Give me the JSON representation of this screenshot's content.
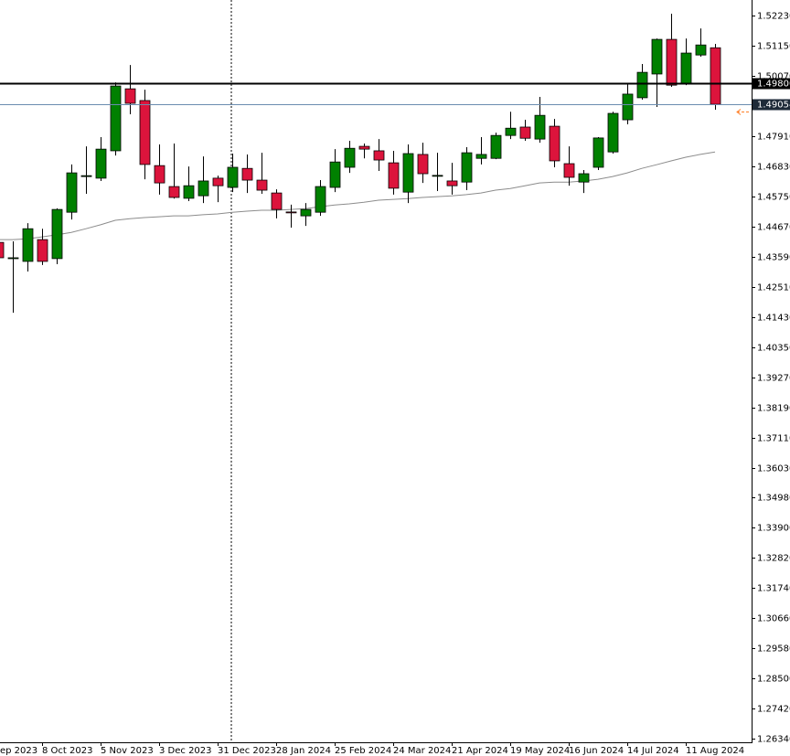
{
  "chart_data": {
    "type": "candlestick",
    "categories": [
      "ep 2023",
      null,
      null,
      "8 Oct 2023",
      null,
      null,
      null,
      "5 Nov 2023",
      null,
      null,
      null,
      "3 Dec 2023",
      null,
      null,
      null,
      "31 Dec 2023",
      null,
      null,
      null,
      "28 Jan 2024",
      null,
      null,
      null,
      "25 Feb 2024",
      null,
      null,
      null,
      "24 Mar 2024",
      null,
      null,
      null,
      "21 Apr 2024",
      null,
      null,
      null,
      "19 May 2024",
      null,
      null,
      null,
      "16 Jun 2024",
      null,
      null,
      null,
      "14 Jul 2024",
      null,
      null,
      null,
      "11 Aug 2024",
      null,
      null
    ],
    "open": [
      1.4411,
      1.4353,
      1.4343,
      1.4421,
      1.4353,
      1.4519,
      1.4647,
      1.4641,
      1.4739,
      1.4961,
      1.4919,
      1.4686,
      1.4611,
      1.4569,
      1.4578,
      1.4641,
      1.4608,
      1.4676,
      1.4634,
      1.4588,
      1.452,
      1.4506,
      1.4519,
      1.4608,
      1.468,
      1.4755,
      1.4739,
      1.4696,
      1.4591,
      1.4726,
      1.465,
      1.4631,
      1.4627,
      1.4712,
      1.4712,
      1.4794,
      1.4824,
      1.4781,
      1.4827,
      1.4693,
      1.4627,
      1.468,
      1.4735,
      1.485,
      1.4929,
      1.5014,
      1.5138,
      1.4978,
      1.5082,
      1.5108
    ],
    "high": [
      1.4427,
      1.4415,
      1.448,
      1.446,
      1.4533,
      1.469,
      1.4755,
      1.4788,
      1.4984,
      1.5046,
      1.4958,
      1.4762,
      1.4765,
      1.4683,
      1.4719,
      1.465,
      1.4729,
      1.4726,
      1.4732,
      1.4601,
      1.4546,
      1.4552,
      1.4634,
      1.4745,
      1.4775,
      1.4765,
      1.4781,
      1.4739,
      1.4762,
      1.4768,
      1.4732,
      1.4696,
      1.4752,
      1.4788,
      1.4804,
      1.4879,
      1.485,
      1.4932,
      1.4853,
      1.4755,
      1.467,
      1.4788,
      1.4879,
      1.4978,
      1.505,
      1.5141,
      1.523,
      1.5141,
      1.5177,
      1.5122
    ],
    "low": [
      1.4346,
      1.4159,
      1.4307,
      1.433,
      1.4333,
      1.4493,
      1.4585,
      1.4631,
      1.4722,
      1.487,
      1.4637,
      1.4582,
      1.4568,
      1.4559,
      1.4552,
      1.4555,
      1.4591,
      1.4588,
      1.4585,
      1.4497,
      1.4464,
      1.447,
      1.4506,
      1.4591,
      1.466,
      1.4712,
      1.4667,
      1.4582,
      1.4552,
      1.4624,
      1.4595,
      1.4582,
      1.4598,
      1.469,
      1.4709,
      1.4781,
      1.4775,
      1.4768,
      1.468,
      1.4614,
      1.4588,
      1.467,
      1.4729,
      1.4834,
      1.4922,
      1.4896,
      1.4968,
      1.4974,
      1.5076,
      1.4886
    ],
    "close": [
      1.4356,
      1.4356,
      1.446,
      1.4343,
      1.4529,
      1.466,
      1.465,
      1.4745,
      1.4971,
      1.4909,
      1.469,
      1.4624,
      1.4572,
      1.4614,
      1.4631,
      1.4614,
      1.468,
      1.4634,
      1.4598,
      1.4529,
      1.4519,
      1.4529,
      1.4611,
      1.4699,
      1.4748,
      1.4745,
      1.4706,
      1.4605,
      1.4729,
      1.4657,
      1.4651,
      1.4614,
      1.4732,
      1.4726,
      1.4794,
      1.482,
      1.4784,
      1.4866,
      1.4703,
      1.4644,
      1.4657,
      1.4785,
      1.4873,
      1.4942,
      1.502,
      1.5138,
      1.4974,
      1.5089,
      1.5118,
      1.49054
    ],
    "up_color": "#008000",
    "down_color": "#dc143c",
    "moving_average": {
      "color": "#8c8c8c",
      "values": [
        1.4421,
        1.4421,
        1.4424,
        1.4431,
        1.4438,
        1.4447,
        1.446,
        1.4474,
        1.449,
        1.4496,
        1.45,
        1.4503,
        1.4506,
        1.4506,
        1.451,
        1.4513,
        1.4519,
        1.4523,
        1.4526,
        1.4526,
        1.4529,
        1.4532,
        1.4539,
        1.4545,
        1.4549,
        1.4555,
        1.4562,
        1.4565,
        1.4568,
        1.4572,
        1.4575,
        1.4578,
        1.4582,
        1.4588,
        1.4598,
        1.4604,
        1.4614,
        1.4624,
        1.4627,
        1.4627,
        1.4631,
        1.4637,
        1.4647,
        1.466,
        1.4676,
        1.4689,
        1.4703,
        1.4716,
        1.4726,
        1.4735
      ]
    },
    "hlines": [
      {
        "value": 1.498,
        "label": "1.49800",
        "color": "#000000"
      },
      {
        "value": 1.49054,
        "label": "1.49054",
        "color": "#6a8caf"
      }
    ],
    "ylim": [
      1.2621,
      1.5279
    ],
    "yticks": [
      {
        "value": 1.5223,
        "label": "1.52230"
      },
      {
        "value": 1.5115,
        "label": "1.51150"
      },
      {
        "value": 1.5007,
        "label": "1.50070"
      },
      {
        "value": 1.4791,
        "label": "1.47910"
      },
      {
        "value": 1.4683,
        "label": "1.46830"
      },
      {
        "value": 1.4575,
        "label": "1.45750"
      },
      {
        "value": 1.4467,
        "label": "1.44670"
      },
      {
        "value": 1.4359,
        "label": "1.43590"
      },
      {
        "value": 1.4251,
        "label": "1.42510"
      },
      {
        "value": 1.4143,
        "label": "1.41430"
      },
      {
        "value": 1.4035,
        "label": "1.40350"
      },
      {
        "value": 1.3927,
        "label": "1.39270"
      },
      {
        "value": 1.3819,
        "label": "1.38190"
      },
      {
        "value": 1.3711,
        "label": "1.37110"
      },
      {
        "value": 1.3603,
        "label": "1.36030"
      },
      {
        "value": 1.3498,
        "label": "1.34980"
      },
      {
        "value": 1.339,
        "label": "1.33900"
      },
      {
        "value": 1.3282,
        "label": "1.32820"
      },
      {
        "value": 1.3174,
        "label": "1.31740"
      },
      {
        "value": 1.3066,
        "label": "1.30660"
      },
      {
        "value": 1.2958,
        "label": "1.29580"
      },
      {
        "value": 1.285,
        "label": "1.28500"
      },
      {
        "value": 1.2742,
        "label": "1.27420"
      },
      {
        "value": 1.2634,
        "label": "1.26340"
      }
    ]
  }
}
